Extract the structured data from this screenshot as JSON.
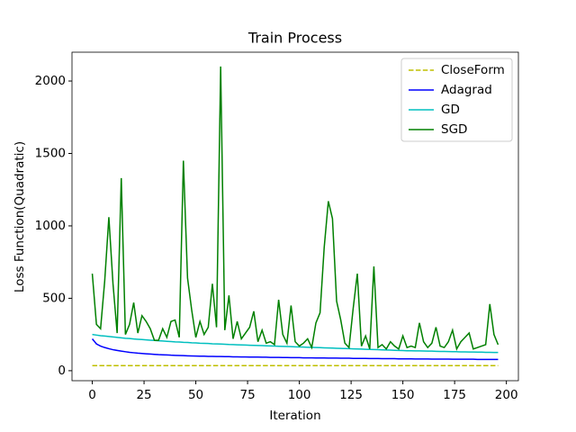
{
  "chart_data": {
    "type": "line",
    "title": "Train Process",
    "x_label": "Iteration",
    "y_label": "Loss Function(Quadratic)",
    "x": [
      0,
      2,
      4,
      6,
      8,
      10,
      12,
      14,
      16,
      18,
      20,
      22,
      24,
      26,
      28,
      30,
      32,
      34,
      36,
      38,
      40,
      42,
      44,
      46,
      48,
      50,
      52,
      54,
      56,
      58,
      60,
      62,
      64,
      66,
      68,
      70,
      72,
      74,
      76,
      78,
      80,
      82,
      84,
      86,
      88,
      90,
      92,
      94,
      96,
      98,
      100,
      102,
      104,
      106,
      108,
      110,
      112,
      114,
      116,
      118,
      120,
      122,
      124,
      126,
      128,
      130,
      132,
      134,
      136,
      138,
      140,
      142,
      144,
      146,
      148,
      150,
      152,
      154,
      156,
      158,
      160,
      162,
      164,
      166,
      168,
      170,
      172,
      174,
      176,
      178,
      180,
      182,
      184,
      186,
      188,
      190,
      192,
      194,
      196
    ],
    "series": [
      {
        "name": "CloseForm",
        "color": "#bfbf00",
        "dash": true,
        "values": [
          35,
          35,
          35,
          35,
          35,
          35,
          35,
          35,
          35,
          35,
          35,
          35,
          35,
          35,
          35,
          35,
          35,
          35,
          35,
          35,
          35,
          35,
          35,
          35,
          35,
          35,
          35,
          35,
          35,
          35,
          35,
          35,
          35,
          35,
          35,
          35,
          35,
          35,
          35,
          35,
          35,
          35,
          35,
          35,
          35,
          35,
          35,
          35,
          35,
          35,
          35,
          35,
          35,
          35,
          35,
          35,
          35,
          35,
          35,
          35,
          35,
          35,
          35,
          35,
          35,
          35,
          35,
          35,
          35,
          35,
          35,
          35,
          35,
          35,
          35,
          35,
          35,
          35,
          35,
          35,
          35,
          35,
          35,
          35,
          35,
          35,
          35,
          35,
          35,
          35,
          35,
          35,
          35,
          35,
          35,
          35,
          35,
          35,
          35
        ]
      },
      {
        "name": "Adagrad",
        "color": "#0000ff",
        "dash": false,
        "values": [
          220,
          185,
          170,
          160,
          152,
          145,
          140,
          135,
          131,
          127,
          124,
          121,
          119,
          117,
          115,
          113,
          111,
          110,
          109,
          107,
          106,
          105,
          104,
          103,
          102,
          101,
          100,
          100,
          99,
          99,
          98,
          98,
          97,
          97,
          96,
          96,
          95,
          95,
          94,
          94,
          94,
          93,
          93,
          92,
          92,
          92,
          91,
          91,
          90,
          90,
          90,
          89,
          89,
          89,
          88,
          88,
          88,
          87,
          87,
          87,
          86,
          86,
          86,
          85,
          85,
          85,
          85,
          84,
          84,
          84,
          83,
          83,
          83,
          83,
          82,
          82,
          82,
          82,
          81,
          81,
          81,
          81,
          80,
          80,
          80,
          80,
          80,
          79,
          79,
          79,
          79,
          79,
          79,
          78,
          78,
          78,
          78,
          78,
          78
        ]
      },
      {
        "name": "GD",
        "color": "#00bfbf",
        "dash": false,
        "values": [
          250,
          246,
          242,
          239,
          236,
          233,
          230,
          227,
          224,
          222,
          219,
          217,
          215,
          213,
          211,
          209,
          207,
          205,
          203,
          201,
          199,
          198,
          196,
          195,
          193,
          192,
          190,
          189,
          188,
          186,
          185,
          184,
          183,
          181,
          180,
          179,
          178,
          177,
          176,
          175,
          174,
          173,
          172,
          171,
          170,
          169,
          168,
          167,
          166,
          165,
          164,
          163,
          162,
          161,
          160,
          159,
          158,
          157,
          156,
          155,
          154,
          153,
          152,
          151,
          150,
          149,
          148,
          147,
          146,
          145,
          144,
          143,
          142,
          141,
          140,
          139,
          138,
          138,
          137,
          137,
          136,
          135,
          135,
          134,
          133,
          133,
          132,
          131,
          131,
          130,
          130,
          129,
          129,
          128,
          128,
          127,
          127,
          126,
          126
        ]
      },
      {
        "name": "SGD",
        "color": "#008000",
        "dash": false,
        "values": [
          670,
          320,
          290,
          620,
          1060,
          600,
          260,
          1330,
          250,
          320,
          470,
          260,
          380,
          340,
          290,
          210,
          210,
          290,
          230,
          340,
          350,
          230,
          1450,
          640,
          420,
          230,
          340,
          250,
          300,
          600,
          300,
          2100,
          280,
          520,
          220,
          340,
          220,
          260,
          300,
          410,
          200,
          280,
          190,
          200,
          180,
          490,
          250,
          190,
          450,
          200,
          170,
          190,
          220,
          160,
          330,
          400,
          850,
          1170,
          1050,
          480,
          350,
          190,
          160,
          430,
          670,
          170,
          240,
          150,
          720,
          160,
          180,
          150,
          200,
          170,
          150,
          240,
          160,
          170,
          160,
          330,
          200,
          160,
          190,
          300,
          170,
          160,
          200,
          280,
          150,
          200,
          230,
          260,
          150,
          160,
          170,
          180,
          460,
          250,
          180
        ]
      }
    ],
    "xlim": [
      -9.8,
      205.8
    ],
    "ylim": [
      -69,
      2199
    ],
    "xticks": [
      0,
      25,
      50,
      75,
      100,
      125,
      150,
      175,
      200
    ],
    "yticks": [
      0,
      500,
      1000,
      1500,
      2000
    ],
    "legend": "upper right"
  }
}
